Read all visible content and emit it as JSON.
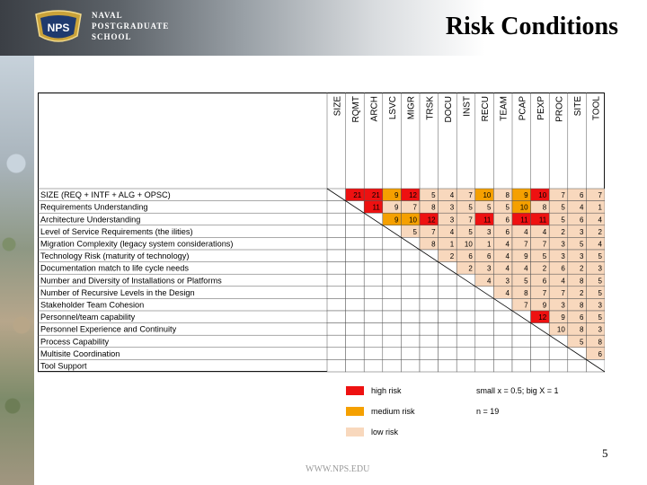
{
  "header": {
    "logo_text": "NPS",
    "logo_lines": [
      "NAVAL",
      "POSTGRADUATE",
      "SCHOOL"
    ],
    "title": "Risk Conditions"
  },
  "colors": {
    "high": "#ee1111",
    "medium": "#f5a000",
    "low": "#f8d8bd",
    "empty": "#ffffff"
  },
  "matrix": {
    "columns": [
      "SIZE",
      "RQMT",
      "ARCH",
      "LSVC",
      "MIGR",
      "TRSK",
      "DOCU",
      "INST",
      "RECU",
      "TEAM",
      "PCAP",
      "PEXP",
      "PROC",
      "SITE",
      "TOOL"
    ],
    "rows": [
      "SIZE (REQ + INTF + ALG + OPSC)",
      "Requirements Understanding",
      "Architecture Understanding",
      "Level of Service Requirements (the ilities)",
      "Migration Complexity (legacy system considerations)",
      "Technology Risk (maturity of technology)",
      "Documentation match to life cycle needs",
      "Number and Diversity of Installations or Platforms",
      "Number of Recursive Levels in the Design",
      "Stakeholder Team Cohesion",
      "Personnel/team capability",
      "Personnel Experience and Continuity",
      "Process Capability",
      "Multisite Coordination",
      "Tool Support"
    ],
    "values": [
      [
        null,
        "21",
        "21",
        "9",
        "12",
        "5",
        "4",
        "7",
        "10",
        "8",
        "9",
        "10",
        "7",
        "6",
        "7"
      ],
      [
        null,
        null,
        "11",
        "9",
        "7",
        "8",
        "3",
        "5",
        "5",
        "5",
        "10",
        "8",
        "5",
        "4",
        "1"
      ],
      [
        null,
        null,
        null,
        "9",
        "10",
        "12",
        "3",
        "7",
        "11",
        "6",
        "11",
        "11",
        "5",
        "6",
        "4"
      ],
      [
        null,
        null,
        null,
        null,
        "5",
        "7",
        "4",
        "5",
        "3",
        "6",
        "4",
        "4",
        "2",
        "3",
        "2"
      ],
      [
        null,
        null,
        null,
        null,
        null,
        "8",
        "1",
        "10",
        "1",
        "4",
        "7",
        "7",
        "3",
        "5",
        "4"
      ],
      [
        null,
        null,
        null,
        null,
        null,
        null,
        "2",
        "6",
        "6",
        "4",
        "9",
        "5",
        "3",
        "3",
        "5"
      ],
      [
        null,
        null,
        null,
        null,
        null,
        null,
        null,
        "2",
        "3",
        "4",
        "4",
        "2",
        "6",
        "2",
        "3"
      ],
      [
        null,
        null,
        null,
        null,
        null,
        null,
        null,
        null,
        "4",
        "3",
        "5",
        "6",
        "4",
        "8",
        "5"
      ],
      [
        null,
        null,
        null,
        null,
        null,
        null,
        null,
        null,
        null,
        "4",
        "8",
        "7",
        "7",
        "2",
        "5"
      ],
      [
        null,
        null,
        null,
        null,
        null,
        null,
        null,
        null,
        null,
        null,
        "7",
        "9",
        "3",
        "8",
        "3"
      ],
      [
        null,
        null,
        null,
        null,
        null,
        null,
        null,
        null,
        null,
        null,
        null,
        "12",
        "9",
        "6",
        "5"
      ],
      [
        null,
        null,
        null,
        null,
        null,
        null,
        null,
        null,
        null,
        null,
        null,
        null,
        "10",
        "8",
        "3"
      ],
      [
        null,
        null,
        null,
        null,
        null,
        null,
        null,
        null,
        null,
        null,
        null,
        null,
        null,
        "5",
        "8"
      ],
      [
        null,
        null,
        null,
        null,
        null,
        null,
        null,
        null,
        null,
        null,
        null,
        null,
        null,
        null,
        "6"
      ],
      [
        null,
        null,
        null,
        null,
        null,
        null,
        null,
        null,
        null,
        null,
        null,
        null,
        null,
        null,
        null
      ]
    ],
    "risk": [
      [
        null,
        "high",
        "high",
        "medium",
        "high",
        "low",
        "low",
        "low",
        "medium",
        "low",
        "medium",
        "high",
        "low",
        "low",
        "low"
      ],
      [
        null,
        null,
        "high",
        "low",
        "low",
        "low",
        "low",
        "low",
        "low",
        "low",
        "medium",
        "low",
        "low",
        "low",
        "low"
      ],
      [
        null,
        null,
        null,
        "medium",
        "medium",
        "high",
        "low",
        "low",
        "high",
        "low",
        "high",
        "high",
        "low",
        "low",
        "low"
      ],
      [
        null,
        null,
        null,
        null,
        "low",
        "low",
        "low",
        "low",
        "low",
        "low",
        "low",
        "low",
        "low",
        "low",
        "low"
      ],
      [
        null,
        null,
        null,
        null,
        null,
        "low",
        "low",
        "low",
        "low",
        "low",
        "low",
        "low",
        "low",
        "low",
        "low"
      ],
      [
        null,
        null,
        null,
        null,
        null,
        null,
        "low",
        "low",
        "low",
        "low",
        "low",
        "low",
        "low",
        "low",
        "low"
      ],
      [
        null,
        null,
        null,
        null,
        null,
        null,
        null,
        "low",
        "low",
        "low",
        "low",
        "low",
        "low",
        "low",
        "low"
      ],
      [
        null,
        null,
        null,
        null,
        null,
        null,
        null,
        null,
        "low",
        "low",
        "low",
        "low",
        "low",
        "low",
        "low"
      ],
      [
        null,
        null,
        null,
        null,
        null,
        null,
        null,
        null,
        null,
        "low",
        "low",
        "low",
        "low",
        "low",
        "low"
      ],
      [
        null,
        null,
        null,
        null,
        null,
        null,
        null,
        null,
        null,
        null,
        "low",
        "low",
        "low",
        "low",
        "low"
      ],
      [
        null,
        null,
        null,
        null,
        null,
        null,
        null,
        null,
        null,
        null,
        null,
        "high",
        "low",
        "low",
        "low"
      ],
      [
        null,
        null,
        null,
        null,
        null,
        null,
        null,
        null,
        null,
        null,
        null,
        null,
        "low",
        "low",
        "low"
      ],
      [
        null,
        null,
        null,
        null,
        null,
        null,
        null,
        null,
        null,
        null,
        null,
        null,
        null,
        "low",
        "low"
      ],
      [
        null,
        null,
        null,
        null,
        null,
        null,
        null,
        null,
        null,
        null,
        null,
        null,
        null,
        null,
        "low"
      ],
      [
        null,
        null,
        null,
        null,
        null,
        null,
        null,
        null,
        null,
        null,
        null,
        null,
        null,
        null,
        null
      ]
    ]
  },
  "legend": {
    "high": "high risk",
    "medium": "medium risk",
    "low": "low risk",
    "note1": "small x = 0.5; big X = 1",
    "note2": "n = 19"
  },
  "footer": {
    "url": "WWW.NPS.EDU",
    "page": "5"
  }
}
